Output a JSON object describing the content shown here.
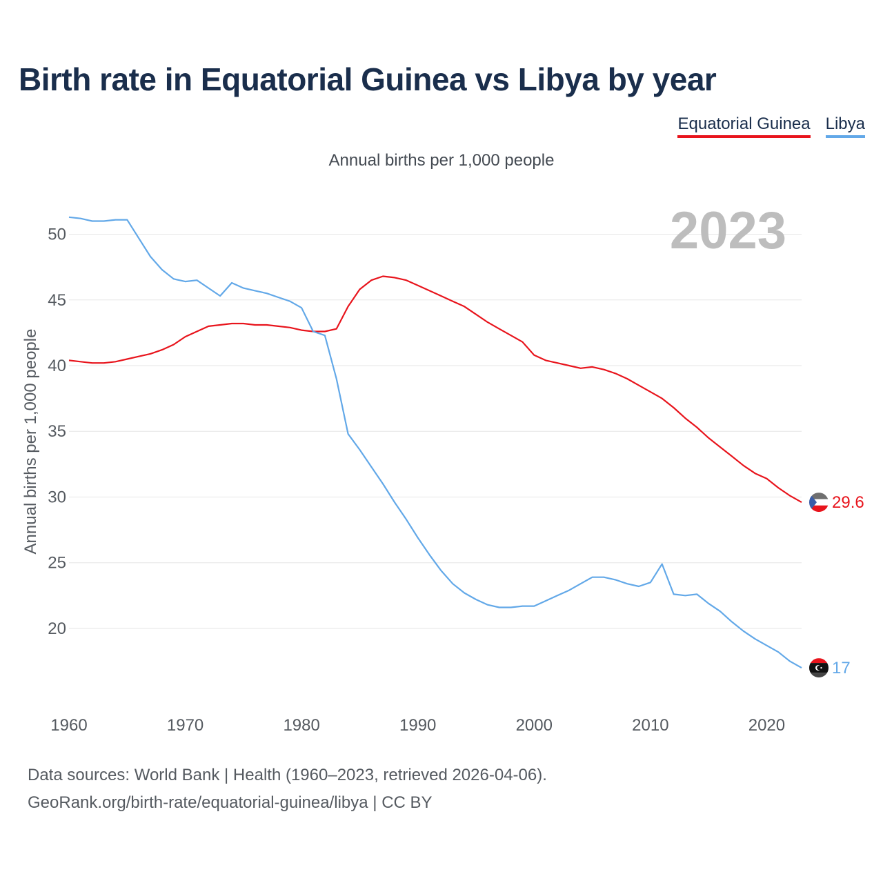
{
  "title": "Birth rate in Equatorial Guinea vs Libya by year",
  "legend": [
    {
      "label": "Equatorial Guinea",
      "color": "#e8141c"
    },
    {
      "label": "Libya",
      "color": "#62a8e8"
    }
  ],
  "source": {
    "line1": "Data sources: World Bank | Health (1960–2023, retrieved 2026-04-06).",
    "line2": "GeoRank.org/birth-rate/equatorial-guinea/libya | CC BY"
  },
  "chart_data": {
    "type": "line",
    "subtitle": "Annual births per 1,000 people",
    "ylabel": "Annual births per 1,000 people",
    "xlabel": "",
    "year_label": "2023",
    "xlim": [
      1960,
      2023
    ],
    "ylim": [
      14.8,
      52.6
    ],
    "xticks": [
      1960,
      1970,
      1980,
      1990,
      2000,
      2010,
      2020
    ],
    "yticks": [
      20,
      25,
      30,
      35,
      40,
      45,
      50
    ],
    "grid": true,
    "series": [
      {
        "name": "Equatorial Guinea",
        "color": "#e8141c",
        "end_label": "29.6",
        "x_start": 1960,
        "values": [
          40.4,
          40.3,
          40.2,
          40.2,
          40.3,
          40.5,
          40.7,
          40.9,
          41.2,
          41.6,
          42.2,
          42.6,
          43.0,
          43.1,
          43.2,
          43.2,
          43.1,
          43.1,
          43.0,
          42.9,
          42.7,
          42.6,
          42.6,
          42.8,
          44.5,
          45.8,
          46.5,
          46.8,
          46.7,
          46.5,
          46.1,
          45.7,
          45.3,
          44.9,
          44.5,
          43.9,
          43.3,
          42.8,
          42.3,
          41.8,
          40.8,
          40.4,
          40.2,
          40.0,
          39.8,
          39.9,
          39.7,
          39.4,
          39.0,
          38.5,
          38.0,
          37.5,
          36.8,
          36.0,
          35.3,
          34.5,
          33.8,
          33.1,
          32.4,
          31.8,
          31.4,
          30.7,
          30.1,
          29.6
        ]
      },
      {
        "name": "Libya",
        "color": "#62a8e8",
        "end_label": "17",
        "x_start": 1960,
        "values": [
          51.3,
          51.2,
          51.0,
          51.0,
          51.1,
          51.1,
          49.7,
          48.3,
          47.3,
          46.6,
          46.4,
          46.5,
          45.9,
          45.3,
          46.3,
          45.9,
          45.7,
          45.5,
          45.2,
          44.9,
          44.4,
          42.6,
          42.3,
          39.0,
          34.8,
          33.6,
          32.3,
          31.0,
          29.6,
          28.3,
          26.9,
          25.6,
          24.4,
          23.4,
          22.7,
          22.2,
          21.8,
          21.6,
          21.6,
          21.7,
          21.7,
          22.1,
          22.5,
          22.9,
          23.4,
          23.9,
          23.9,
          23.7,
          23.4,
          23.2,
          23.5,
          24.9,
          22.6,
          22.5,
          22.6,
          21.9,
          21.3,
          20.5,
          19.8,
          19.2,
          18.7,
          18.2,
          17.5,
          17.0
        ]
      }
    ]
  }
}
